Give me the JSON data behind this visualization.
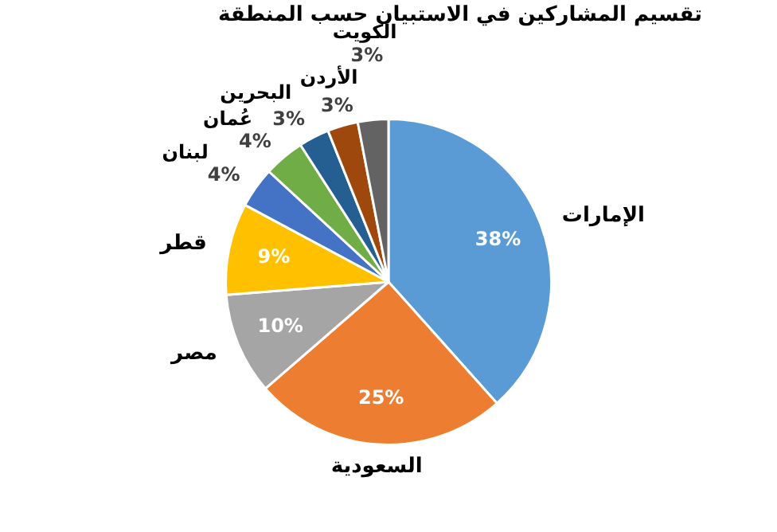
{
  "chart_data": {
    "type": "pie",
    "title": "تقسيم المشاركين في الاستبيان حسب المنطقة",
    "categories": [
      "الإمارات",
      "السعودية",
      "مصر",
      "قطر",
      "لبنان",
      "عُمان",
      "البحرين",
      "الأردن",
      "الكويت"
    ],
    "values": [
      38,
      25,
      10,
      9,
      4,
      4,
      3,
      3,
      3
    ],
    "colors": [
      "#5b9bd5",
      "#ed7d31",
      "#a5a5a5",
      "#ffc000",
      "#4472c4",
      "#70ad47",
      "#255e91",
      "#9e480e",
      "#636363"
    ],
    "value_labels": [
      "38%",
      "25%",
      "10%",
      "9%",
      "4%",
      "4%",
      "3%",
      "3%",
      "3%"
    ],
    "legend": false
  }
}
